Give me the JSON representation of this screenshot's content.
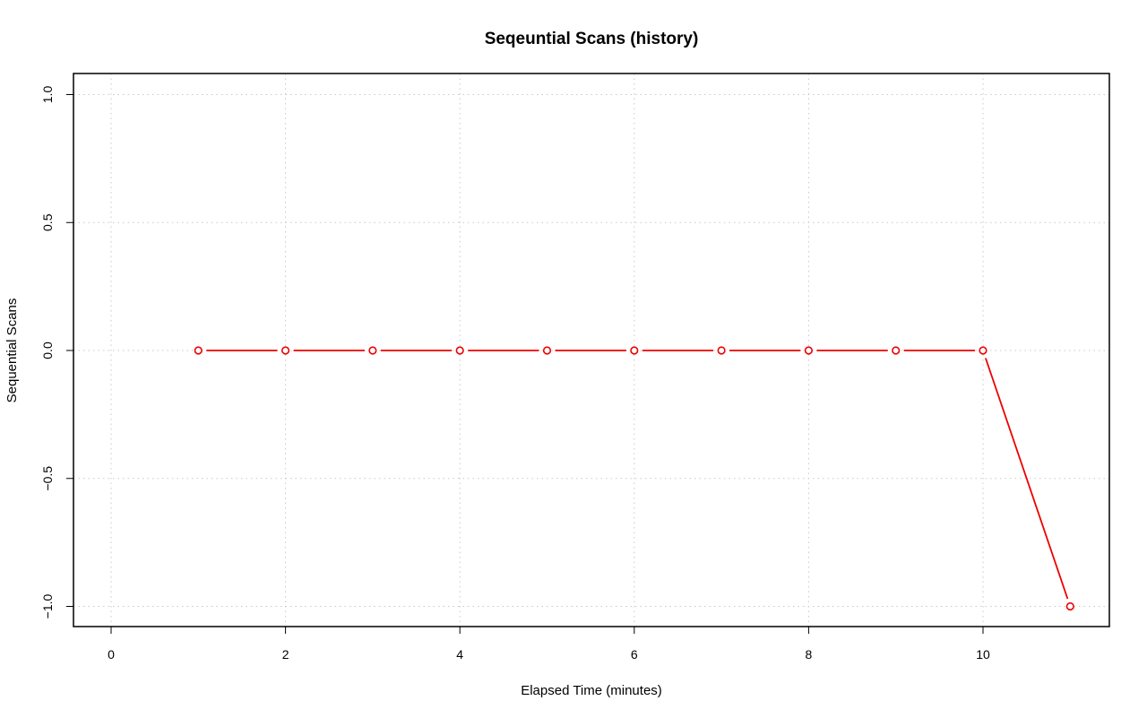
{
  "chart_data": {
    "type": "line",
    "title": "Seqeuntial Scans (history)",
    "xlabel": "Elapsed Time (minutes)",
    "ylabel": "Sequential Scans",
    "xlim": [
      0,
      11
    ],
    "ylim": [
      -1.0,
      1.0
    ],
    "x_ticks": [
      0,
      2,
      4,
      6,
      8,
      10
    ],
    "x_tick_labels": [
      "0",
      "2",
      "4",
      "6",
      "8",
      "10"
    ],
    "y_ticks": [
      -1.0,
      -0.5,
      0.0,
      0.5,
      1.0
    ],
    "y_tick_labels": [
      "−1.0",
      "−0.5",
      "0.0",
      "0.5",
      "1.0"
    ],
    "grid": true,
    "grid_x": [
      0,
      2,
      4,
      6,
      8,
      10
    ],
    "grid_y": [
      -1.0,
      -0.5,
      0.0,
      0.5,
      1.0
    ],
    "series": [
      {
        "color": "#ee0000",
        "marker": "open-circle",
        "x": [
          1,
          2,
          3,
          4,
          5,
          6,
          7,
          8,
          9,
          10,
          11
        ],
        "values": [
          0,
          0,
          0,
          0,
          0,
          0,
          0,
          0,
          0,
          0,
          -1
        ]
      }
    ],
    "colors": {
      "series": "#ee0000",
      "grid": "#c8c8c8",
      "axis": "#000000"
    }
  }
}
